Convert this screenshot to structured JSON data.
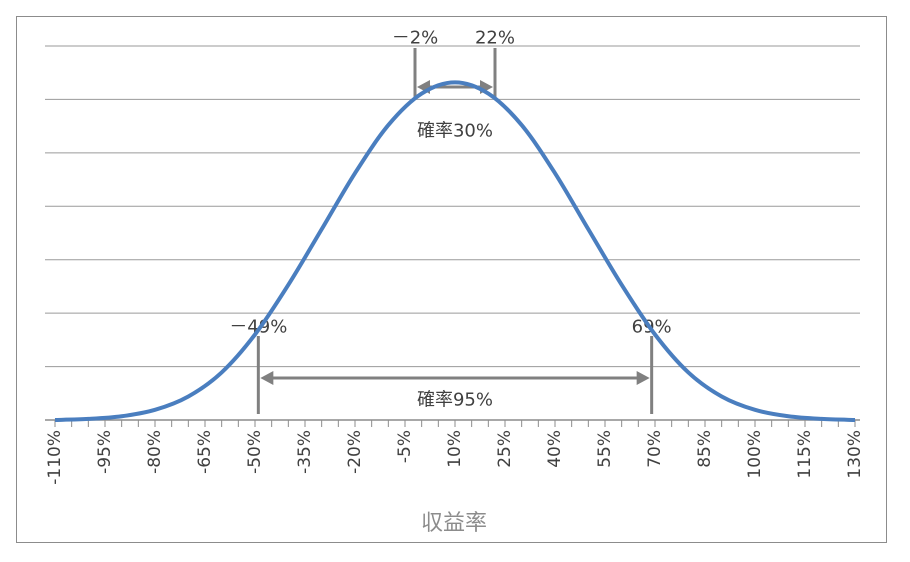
{
  "chart_data": {
    "type": "line",
    "title": "",
    "xlabel": "収益率",
    "ylabel": "",
    "grid": true,
    "legend": "none",
    "curve_color": "#4a7ebf",
    "grid_color": "#9a9a9a",
    "annotation_color": "#808080",
    "x_ticks": [
      -110,
      -95,
      -80,
      -65,
      -50,
      -35,
      -20,
      -5,
      10,
      25,
      40,
      55,
      70,
      85,
      100,
      115,
      130
    ],
    "x_tick_labels": [
      "-110%",
      "-95%",
      "-80%",
      "-65%",
      "-50%",
      "-35%",
      "-20%",
      "-5%",
      "10%",
      "25%",
      "40%",
      "55%",
      "70%",
      "85%",
      "100%",
      "115%",
      "130%"
    ],
    "xlim": [
      -110,
      130
    ],
    "ylim": [
      0,
      7
    ],
    "y_gridlines": [
      1,
      2,
      3,
      4,
      5,
      6,
      7
    ],
    "series": [
      {
        "x": [
          -110,
          -100,
          -90,
          -80,
          -70,
          -60,
          -50,
          -40,
          -30,
          -20,
          -10,
          0,
          10,
          20,
          30,
          40,
          50,
          60,
          70,
          80,
          90,
          100,
          110,
          120,
          130
        ],
        "y": [
          0.0,
          0.02,
          0.07,
          0.19,
          0.44,
          0.89,
          1.6,
          2.53,
          3.57,
          4.62,
          5.52,
          6.11,
          6.32,
          6.11,
          5.52,
          4.62,
          3.57,
          2.53,
          1.6,
          0.89,
          0.44,
          0.19,
          0.07,
          0.02,
          0.0
        ]
      }
    ],
    "annotations": [
      {
        "type": "interval",
        "from": -2,
        "to": 22,
        "level": 6.0,
        "from_label": "－2%",
        "to_label": "22%",
        "label": "確率30%"
      },
      {
        "type": "interval",
        "from": -49,
        "to": 69,
        "level": 0.8,
        "from_label": "－49%",
        "to_label": "69%",
        "label": "確率95%"
      }
    ]
  }
}
